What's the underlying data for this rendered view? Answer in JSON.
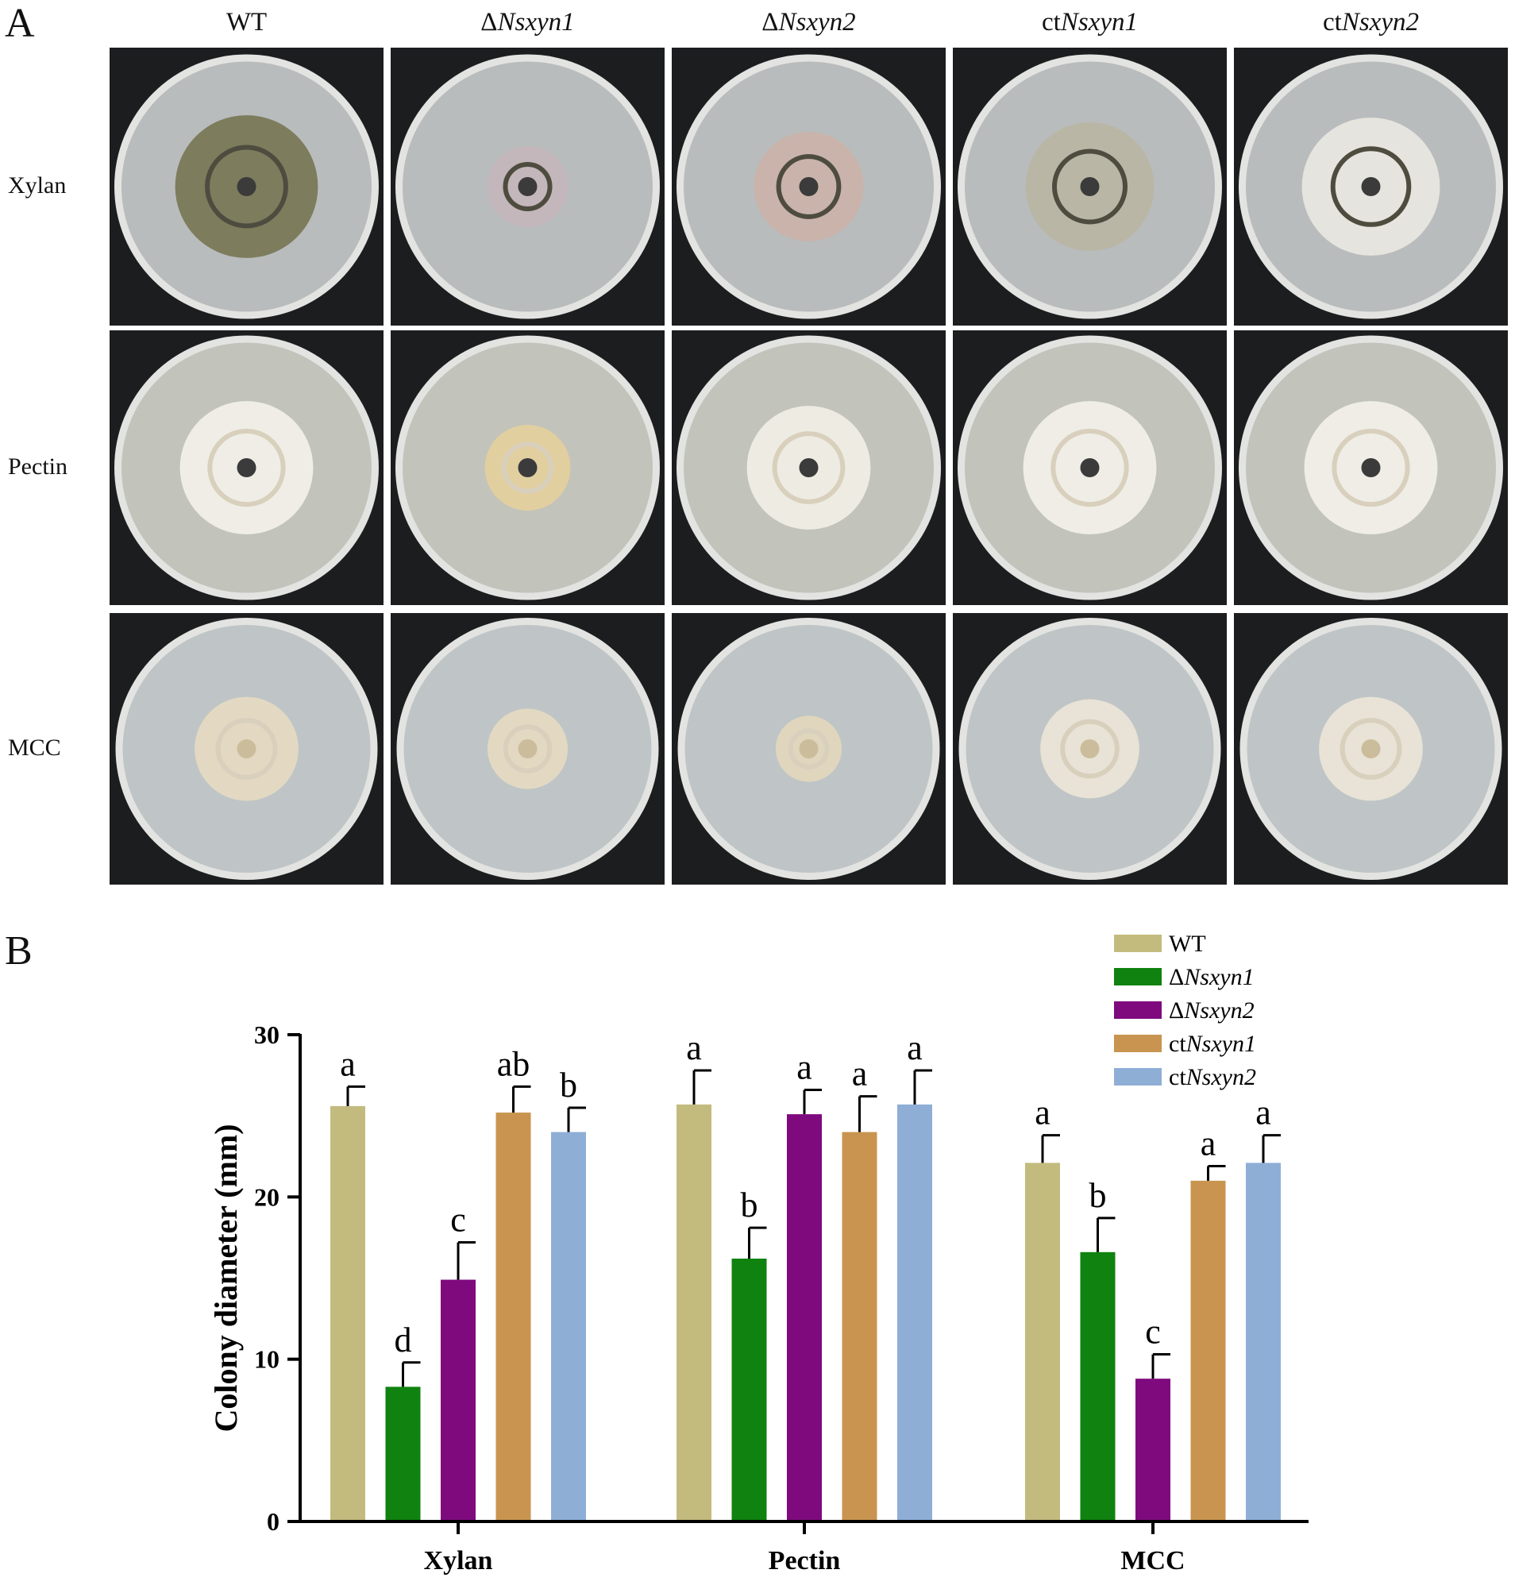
{
  "panel_letters": {
    "a": "A",
    "b": "B"
  },
  "photo_grid": {
    "columns": [
      {
        "prefix": "WT",
        "italic": ""
      },
      {
        "prefix": "Δ",
        "italic": "Nsxyn1"
      },
      {
        "prefix": "Δ",
        "italic": "Nsxyn2"
      },
      {
        "prefix": "ct",
        "italic": "Nsxyn1"
      },
      {
        "prefix": "ct",
        "italic": "Nsxyn2"
      }
    ],
    "rows": [
      "Xylan",
      "Pectin",
      "MCC"
    ],
    "colors": {
      "background": "#1c1d1f",
      "agar": "#b9bcbc",
      "rim": "#e3e4e1"
    }
  },
  "chart_data": {
    "type": "bar",
    "categories": [
      "Xylan",
      "Pectin",
      "MCC"
    ],
    "ylabel": "Colony diameter (mm)",
    "xlabel": "",
    "ylim": [
      0,
      30
    ],
    "yticks": [
      0,
      10,
      20,
      30
    ],
    "legend_position": "top-right",
    "series": [
      {
        "name": "WT",
        "name_prefix": "",
        "name_italic": "",
        "color": "#c3bb7e",
        "values": [
          25.6,
          25.7,
          22.1
        ],
        "errors": [
          1.2,
          2.1,
          1.7
        ],
        "letters": [
          "a",
          "a",
          "a"
        ]
      },
      {
        "name": "ΔNsxyn1",
        "name_prefix": "Δ",
        "name_italic": "Nsxyn1",
        "color": "#0f820f",
        "values": [
          8.3,
          16.2,
          16.6
        ],
        "errors": [
          1.5,
          1.9,
          2.1
        ],
        "letters": [
          "d",
          "b",
          "b"
        ]
      },
      {
        "name": "ΔNsxyn2",
        "name_prefix": "Δ",
        "name_italic": "Nsxyn2",
        "color": "#7e0a7e",
        "values": [
          14.9,
          25.1,
          8.8
        ],
        "errors": [
          2.3,
          1.5,
          1.5
        ],
        "letters": [
          "c",
          "a",
          "c"
        ]
      },
      {
        "name": "ctNsxyn1",
        "name_prefix": "ct",
        "name_italic": "Nsxyn1",
        "color": "#c8944f",
        "values": [
          25.2,
          24.0,
          21.0
        ],
        "errors": [
          1.6,
          2.2,
          0.9
        ],
        "letters": [
          "ab",
          "a",
          "a"
        ]
      },
      {
        "name": "ctNsxyn2",
        "name_prefix": "ct",
        "name_italic": "Nsxyn2",
        "color": "#8faed6",
        "values": [
          24.0,
          25.7,
          22.1
        ],
        "errors": [
          1.5,
          2.1,
          1.7
        ],
        "letters": [
          "b",
          "a",
          "a"
        ]
      }
    ]
  }
}
